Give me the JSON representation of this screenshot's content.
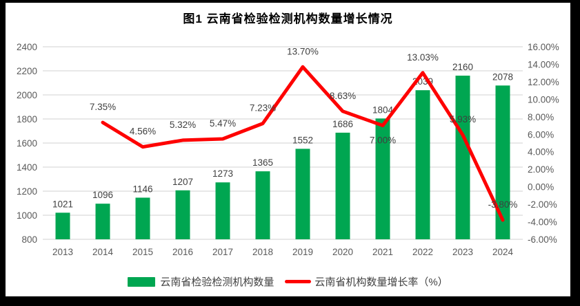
{
  "chart_data": {
    "type": "bar+line combo",
    "title": "图1 云南省检验检测机构数量增长情况",
    "categories": [
      "2013",
      "2014",
      "2015",
      "2016",
      "2017",
      "2018",
      "2019",
      "2020",
      "2021",
      "2022",
      "2023",
      "2024"
    ],
    "series": [
      {
        "name": "云南省检验检测机构数量",
        "type": "bar",
        "axis": "left",
        "color": "#00A651",
        "values": [
          1021,
          1096,
          1146,
          1207,
          1273,
          1365,
          1552,
          1686,
          1804,
          2039,
          2160,
          2078
        ],
        "value_labels": [
          "1021",
          "1096",
          "1146",
          "1207",
          "1273",
          "1365",
          "1552",
          "1686",
          "1804",
          "2039",
          "2160",
          "2078"
        ]
      },
      {
        "name": "云南省机构数量增长率（%）",
        "type": "line",
        "axis": "right",
        "color": "#FE0000",
        "values": [
          null,
          7.35,
          4.56,
          5.32,
          5.47,
          7.23,
          13.7,
          8.63,
          7.0,
          13.03,
          5.93,
          -3.8
        ],
        "value_labels": [
          "",
          "7.35%",
          "4.56%",
          "5.32%",
          "5.47%",
          "7.23%",
          "13.70%",
          "8.63%",
          "7.00%",
          "13.03%",
          "5.93%",
          "-3.80%"
        ],
        "label_positions": [
          "",
          "above",
          "above",
          "above",
          "above",
          "above",
          "above",
          "above",
          "below",
          "above",
          "above",
          "above"
        ]
      }
    ],
    "left_axis": {
      "min": 800,
      "max": 2400,
      "step": 200,
      "ticks": [
        "2400",
        "2200",
        "2000",
        "1800",
        "1600",
        "1400",
        "1200",
        "1000",
        "800"
      ]
    },
    "right_axis": {
      "min": -6,
      "max": 16,
      "step": 2,
      "ticks": [
        "16.00%",
        "14.00%",
        "12.00%",
        "10.00%",
        "8.00%",
        "6.00%",
        "4.00%",
        "2.00%",
        "0.00%",
        "-2.00%",
        "-4.00%",
        "-6.00%"
      ]
    },
    "grid": true,
    "legend_position": "bottom",
    "colors": {
      "bar": "#00A651",
      "line": "#FE0000",
      "gridline": "#D9D9D9",
      "axis_text": "#595959",
      "label_text": "#3F3F3F",
      "title_text": "#000000",
      "frame": "#000000",
      "background": "#FFFFFF"
    }
  }
}
